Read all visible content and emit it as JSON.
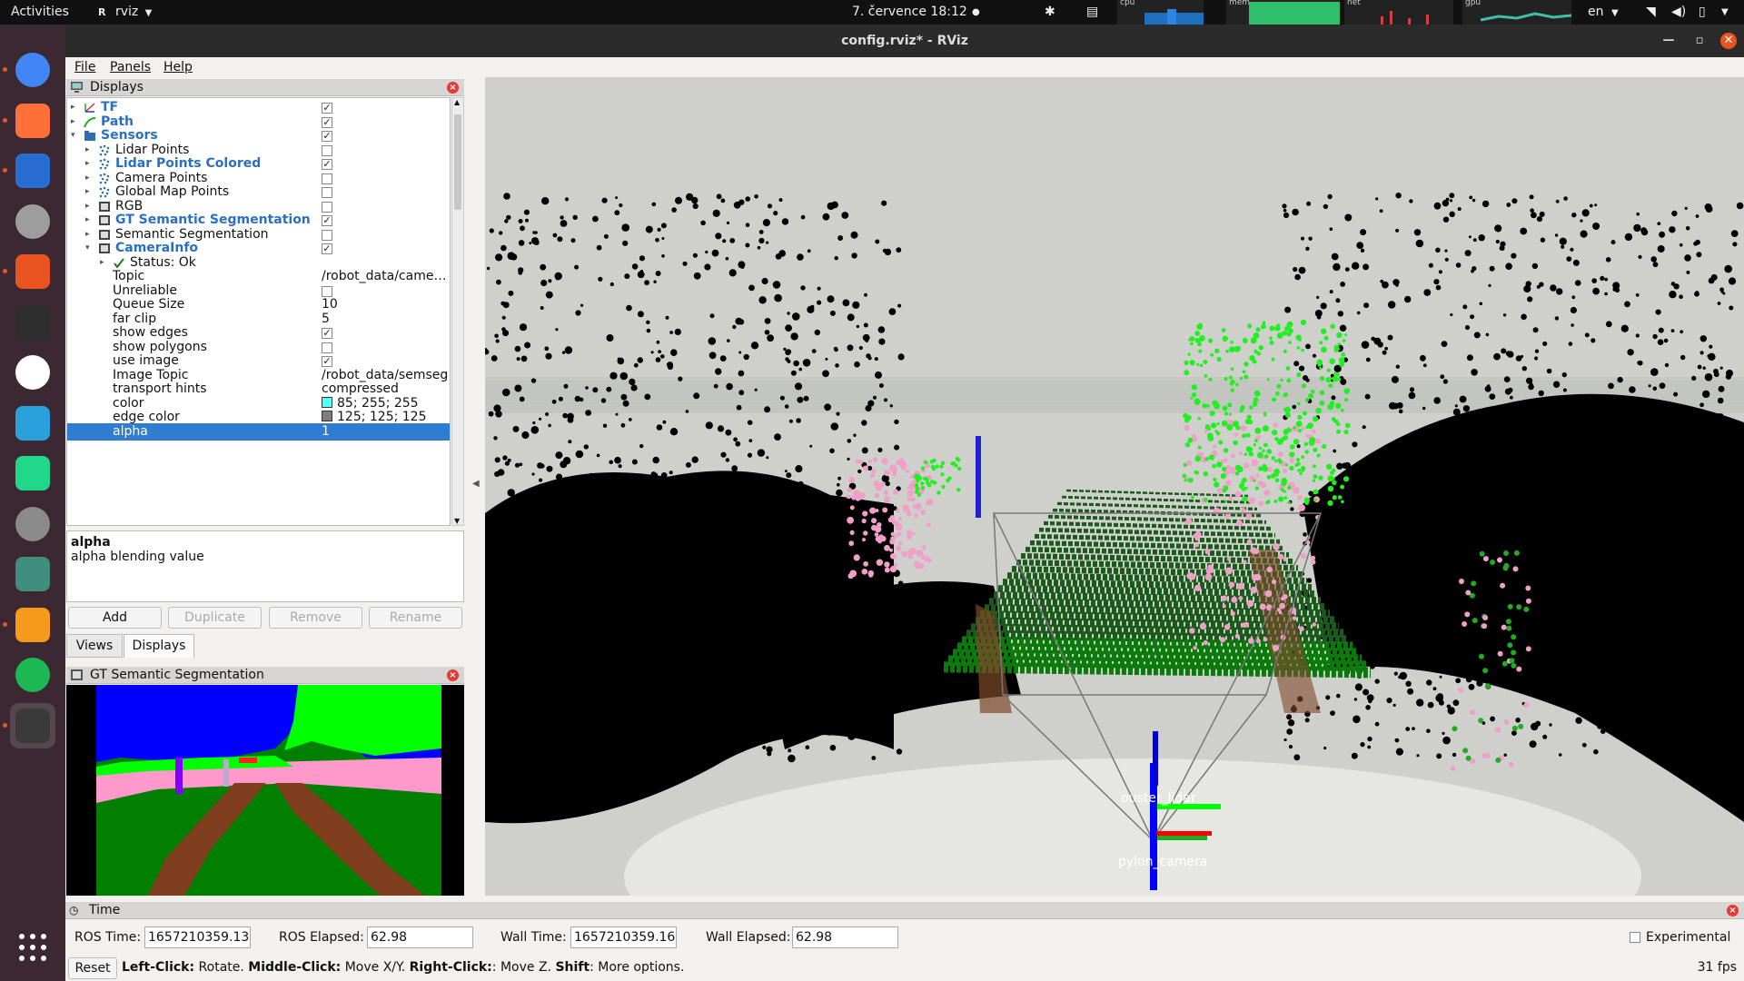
{
  "topbar": {
    "activities": "Activities",
    "app_name": "rviz",
    "clock": "7. července  18:12",
    "graph_labels": {
      "cpu": "cpu",
      "mem": "mem",
      "net": "net",
      "gpu": "gpu"
    },
    "lang": "en"
  },
  "dock": {
    "apps": [
      {
        "name": "chrome-icon",
        "color": "#4285f4"
      },
      {
        "name": "firefox-icon",
        "color": "#ff7139"
      },
      {
        "name": "thunderbird-icon",
        "color": "#2a6dd0"
      },
      {
        "name": "files-icon",
        "color": "#9e9e9e"
      },
      {
        "name": "software-icon",
        "color": "#e95420"
      },
      {
        "name": "terminal-icon",
        "color": "#2d2d2d"
      },
      {
        "name": "slack-icon",
        "color": "#ffffff"
      },
      {
        "name": "telegram-icon",
        "color": "#2aa1da"
      },
      {
        "name": "pycharm-icon",
        "color": "#21d789"
      },
      {
        "name": "settings-icon",
        "color": "#8a8a8a"
      },
      {
        "name": "atom-icon",
        "color": "#3e8e7e"
      },
      {
        "name": "sublime-icon",
        "color": "#f79a1b"
      },
      {
        "name": "spotify-icon",
        "color": "#1db954"
      },
      {
        "name": "rviz-icon",
        "color": "#3a3a3a"
      }
    ],
    "show_apps_icon": "apps-grid-icon"
  },
  "window": {
    "title": "config.rviz* - RViz",
    "menu": {
      "file": "File",
      "panels": "Panels",
      "help": "Help"
    }
  },
  "displays": {
    "title": "Displays",
    "rows": [
      {
        "indent": 0,
        "arrow": "▸",
        "icon": "tf",
        "name": "TF",
        "bold": true,
        "checked": true
      },
      {
        "indent": 0,
        "arrow": "▸",
        "icon": "path",
        "name": "Path",
        "bold": true,
        "checked": true
      },
      {
        "indent": 0,
        "arrow": "▾",
        "icon": "folder",
        "name": "Sensors",
        "bold": true,
        "checked": true
      },
      {
        "indent": 1,
        "arrow": "▸",
        "icon": "points",
        "name": "Lidar Points",
        "bold": false,
        "checked": false
      },
      {
        "indent": 1,
        "arrow": "▸",
        "icon": "points",
        "name": "Lidar Points Colored",
        "bold": true,
        "checked": true
      },
      {
        "indent": 1,
        "arrow": "▸",
        "icon": "points",
        "name": "Camera Points",
        "bold": false,
        "checked": false
      },
      {
        "indent": 1,
        "arrow": "▸",
        "icon": "points",
        "name": "Global Map Points",
        "bold": false,
        "checked": false
      },
      {
        "indent": 1,
        "arrow": "▸",
        "icon": "image",
        "name": "RGB",
        "bold": false,
        "checked": false
      },
      {
        "indent": 1,
        "arrow": "▸",
        "icon": "image",
        "name": "GT Semantic Segmentation",
        "bold": true,
        "checked": true
      },
      {
        "indent": 1,
        "arrow": "▸",
        "icon": "image",
        "name": "Semantic Segmentation",
        "bold": false,
        "checked": false
      },
      {
        "indent": 1,
        "arrow": "▾",
        "icon": "image",
        "name": "CameraInfo",
        "bold": true,
        "checked": true
      },
      {
        "indent": 2,
        "arrow": "▸",
        "icon": "ok",
        "name": "Status: Ok",
        "bold": false
      },
      {
        "indent": 2,
        "arrow": "",
        "name": "Topic",
        "value": "/robot_data/came…"
      },
      {
        "indent": 2,
        "arrow": "",
        "name": "Unreliable",
        "checked": false
      },
      {
        "indent": 2,
        "arrow": "",
        "name": "Queue Size",
        "value": "10"
      },
      {
        "indent": 2,
        "arrow": "",
        "name": "far clip",
        "value": "5"
      },
      {
        "indent": 2,
        "arrow": "",
        "name": "show edges",
        "checked": true
      },
      {
        "indent": 2,
        "arrow": "",
        "name": "show polygons",
        "checked": false
      },
      {
        "indent": 2,
        "arrow": "",
        "name": "use image",
        "checked": true
      },
      {
        "indent": 2,
        "arrow": "",
        "name": "Image Topic",
        "value": "/robot_data/semseg"
      },
      {
        "indent": 2,
        "arrow": "",
        "name": "transport hints",
        "value": "compressed"
      },
      {
        "indent": 2,
        "arrow": "",
        "name": "color",
        "value": "85; 255; 255",
        "swatch": "#55ffff"
      },
      {
        "indent": 2,
        "arrow": "",
        "name": "edge color",
        "value": "125; 125; 125",
        "swatch": "#7d7d7d"
      },
      {
        "indent": 2,
        "arrow": "",
        "name": "alpha",
        "value": "1",
        "selected": true
      }
    ]
  },
  "description": {
    "title": "alpha",
    "text": "alpha blending value"
  },
  "buttons": {
    "add": "Add",
    "duplicate": "Duplicate",
    "remove": "Remove",
    "rename": "Rename"
  },
  "tabs": {
    "views": "Views",
    "displays": "Displays"
  },
  "seg_panel": {
    "title": "GT Semantic Segmentation"
  },
  "viewport": {
    "frame_labels": {
      "lidar": "ouster_lidar",
      "camera": "pylon_camera"
    }
  },
  "time": {
    "title": "Time",
    "ros_time_label": "ROS Time:",
    "ros_time": "1657210359.13",
    "ros_elapsed_label": "ROS Elapsed:",
    "ros_elapsed": "62.98",
    "wall_time_label": "Wall Time:",
    "wall_time": "1657210359.16",
    "wall_elapsed_label": "Wall Elapsed:",
    "wall_elapsed": "62.98",
    "experimental": "Experimental"
  },
  "status": {
    "reset": "Reset",
    "left_click": "Left-Click:",
    "left_action": " Rotate. ",
    "middle_click": "Middle-Click:",
    "middle_action": " Move X/Y. ",
    "right_click": "Right-Click:",
    "right_action": ": Move Z. ",
    "shift": "Shift",
    "shift_action": ": More options.",
    "fps": "31 fps"
  }
}
